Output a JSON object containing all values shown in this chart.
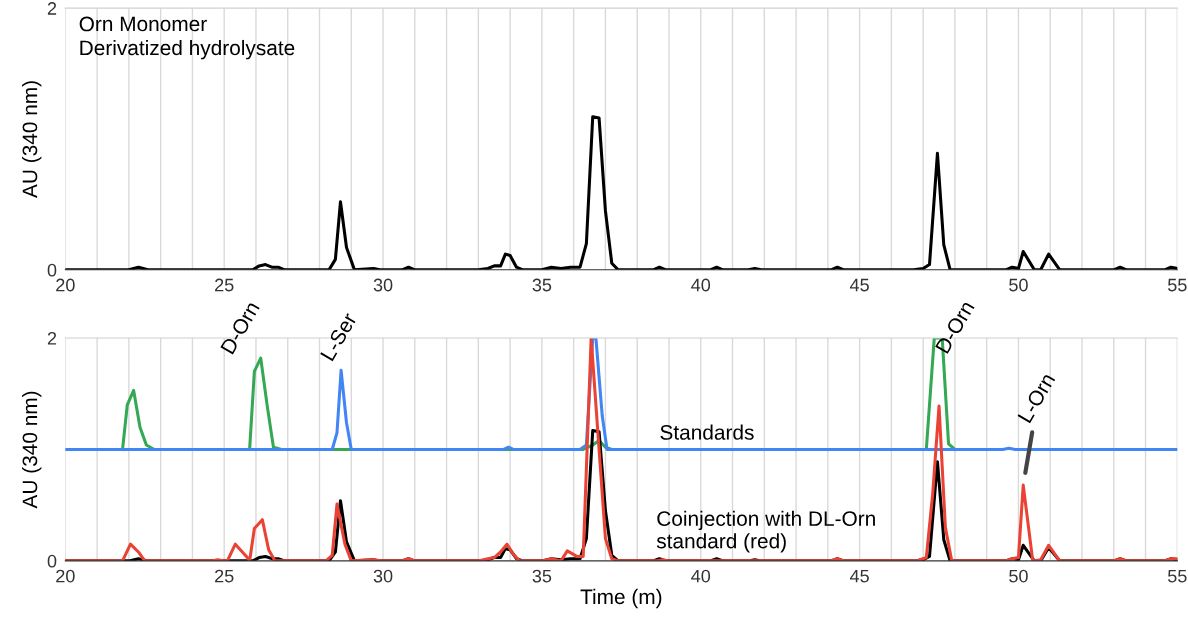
{
  "chart_data": [
    {
      "type": "line",
      "title": "Orn Monomer\nDerivatized hydrolysate",
      "ylabel": "AU (340 nm)",
      "xlim": [
        20,
        55
      ],
      "ylim": [
        0,
        2
      ],
      "yticks": [
        0,
        2
      ],
      "xticks": [
        20,
        {
          "value": 21,
          "label": null
        },
        {
          "value": 22,
          "label": null
        },
        {
          "value": 23,
          "label": null
        },
        {
          "value": 24,
          "label": null
        },
        25,
        {
          "value": 26,
          "label": null
        },
        {
          "value": 27,
          "label": null
        },
        {
          "value": 28,
          "label": null
        },
        {
          "value": 29,
          "label": null
        },
        30,
        {
          "value": 31,
          "label": null
        },
        {
          "value": 32,
          "label": null
        },
        {
          "value": 33,
          "label": null
        },
        {
          "value": 34,
          "label": null
        },
        35,
        {
          "value": 36,
          "label": null
        },
        {
          "value": 37,
          "label": null
        },
        {
          "value": 38,
          "label": null
        },
        {
          "value": 39,
          "label": null
        },
        40,
        {
          "value": 41,
          "label": null
        },
        {
          "value": 42,
          "label": null
        },
        {
          "value": 43,
          "label": null
        },
        {
          "value": 44,
          "label": null
        },
        45,
        {
          "value": 46,
          "label": null
        },
        {
          "value": 47,
          "label": null
        },
        {
          "value": 48,
          "label": null
        },
        {
          "value": 49,
          "label": null
        },
        50,
        {
          "value": 51,
          "label": null
        },
        {
          "value": 52,
          "label": null
        },
        {
          "value": 53,
          "label": null
        },
        {
          "value": 54,
          "label": null
        },
        55
      ],
      "grid": "x",
      "marker": "none",
      "line_style": "solid",
      "series": [
        {
          "color": "#000000",
          "x": [
            20,
            22.0,
            22.3,
            22.6,
            25.9,
            26.1,
            26.3,
            26.5,
            26.7,
            26.9,
            28.3,
            28.5,
            28.66,
            28.85,
            29.1,
            29.7,
            29.9,
            30.6,
            30.8,
            31.0,
            33.0,
            33.3,
            33.5,
            33.7,
            33.85,
            34.0,
            34.2,
            34.4,
            35.0,
            35.3,
            35.6,
            35.9,
            36.2,
            36.4,
            36.6,
            36.8,
            37.0,
            37.2,
            37.4,
            38.5,
            38.7,
            38.9,
            40.3,
            40.5,
            40.7,
            41.5,
            41.7,
            41.9,
            44.1,
            44.3,
            44.5,
            46.7,
            47.0,
            47.2,
            47.45,
            47.65,
            47.85,
            49.6,
            49.8,
            50.0,
            50.15,
            50.5,
            50.7,
            50.95,
            51.3,
            53.0,
            53.2,
            53.4,
            54.6,
            54.8,
            55
          ],
          "values": [
            0,
            0,
            0.02,
            0,
            0,
            0.03,
            0.04,
            0.02,
            0.02,
            0,
            0,
            0.08,
            0.52,
            0.17,
            0,
            0.01,
            0,
            0,
            0.02,
            0,
            0,
            0.01,
            0.03,
            0.03,
            0.12,
            0.11,
            0.02,
            0,
            0,
            0.02,
            0.01,
            0.02,
            0.02,
            0.2,
            1.17,
            1.16,
            0.45,
            0.05,
            0,
            0,
            0.02,
            0,
            0,
            0.02,
            0,
            0,
            0.01,
            0,
            0,
            0.02,
            0,
            0,
            0.01,
            0.04,
            0.89,
            0.19,
            0,
            0,
            0.02,
            0.01,
            0.14,
            0,
            0,
            0.12,
            0,
            0,
            0.02,
            0,
            0,
            0.02,
            0.01
          ]
        }
      ]
    },
    {
      "type": "line",
      "xlabel": "Time (m)",
      "ylabel": "AU (340 nm)",
      "xlim": [
        20,
        55
      ],
      "ylim": [
        0,
        2
      ],
      "yticks": [
        0,
        2
      ],
      "xticks": [
        20,
        {
          "value": 21,
          "label": null
        },
        {
          "value": 22,
          "label": null
        },
        {
          "value": 23,
          "label": null
        },
        {
          "value": 24,
          "label": null
        },
        25,
        {
          "value": 26,
          "label": null
        },
        {
          "value": 27,
          "label": null
        },
        {
          "value": 28,
          "label": null
        },
        {
          "value": 29,
          "label": null
        },
        30,
        {
          "value": 31,
          "label": null
        },
        {
          "value": 32,
          "label": null
        },
        {
          "value": 33,
          "label": null
        },
        {
          "value": 34,
          "label": null
        },
        35,
        {
          "value": 36,
          "label": null
        },
        {
          "value": 37,
          "label": null
        },
        {
          "value": 38,
          "label": null
        },
        {
          "value": 39,
          "label": null
        },
        40,
        {
          "value": 41,
          "label": null
        },
        {
          "value": 42,
          "label": null
        },
        {
          "value": 43,
          "label": null
        },
        {
          "value": 44,
          "label": null
        },
        45,
        {
          "value": 46,
          "label": null
        },
        {
          "value": 47,
          "label": null
        },
        {
          "value": 48,
          "label": null
        },
        {
          "value": 49,
          "label": null
        },
        50,
        {
          "value": 51,
          "label": null
        },
        {
          "value": 52,
          "label": null
        },
        {
          "value": 53,
          "label": null
        },
        {
          "value": 54,
          "label": null
        },
        55
      ],
      "grid": "x",
      "marker": "none",
      "line_style": "solid",
      "annotations": [
        {
          "text": "D-Orn",
          "x": 26.15,
          "y": 1.82
        },
        {
          "text": "L-Ser",
          "x": 28.68,
          "y": 1.71
        },
        {
          "text": "D-Orn",
          "x": 47.6,
          "y": 2.0
        },
        {
          "text": "L-Orn",
          "x": 50.15,
          "y": 0.68
        },
        {
          "text": "Standards",
          "x": 38.7,
          "y": 1.0
        },
        {
          "text": "Coinjection with DL-Orn\nstandard (red)",
          "x": 38.6,
          "y": 0
        }
      ],
      "series": [
        {
          "color": "#34a853",
          "x": [
            21.8,
            21.95,
            22.15,
            22.35,
            22.55,
            22.8,
            25.8,
            25.95,
            26.15,
            26.35,
            26.55,
            26.8,
            36.3,
            36.6,
            36.8,
            37.0,
            37.2,
            47.1,
            47.35,
            47.6,
            47.8,
            48.0
          ],
          "values": [
            1,
            1.4,
            1.53,
            1.2,
            1.04,
            1.0,
            1.0,
            1.7,
            1.82,
            1.4,
            1.02,
            1.0,
            1.0,
            1.04,
            1.08,
            1.02,
            1.0,
            1.0,
            2.0,
            2.0,
            1.05,
            1.0
          ]
        },
        {
          "color": "#4285f4",
          "x": [
            20,
            28.4,
            28.55,
            28.68,
            28.85,
            29.0,
            33.8,
            33.95,
            34.1,
            36.2,
            36.4,
            36.6,
            36.7,
            36.9,
            37.05,
            49.5,
            49.7,
            49.9,
            55
          ],
          "values": [
            1,
            1,
            1.15,
            1.71,
            1.24,
            1.0,
            1.0,
            1.02,
            1.0,
            1.0,
            1.04,
            2.0,
            2.0,
            1.3,
            1.0,
            1.0,
            1.01,
            1.0,
            1.0
          ]
        },
        {
          "color": "#000000",
          "x": [
            20,
            22.0,
            22.3,
            22.6,
            25.9,
            26.1,
            26.3,
            26.5,
            26.7,
            26.9,
            28.3,
            28.5,
            28.66,
            28.85,
            29.1,
            29.7,
            29.9,
            30.6,
            30.8,
            31.0,
            33.0,
            33.3,
            33.5,
            33.7,
            33.85,
            34.0,
            34.2,
            34.4,
            35.0,
            35.3,
            35.6,
            35.9,
            36.2,
            36.4,
            36.6,
            36.8,
            37.0,
            37.2,
            37.4,
            38.5,
            38.7,
            38.9,
            40.3,
            40.5,
            40.7,
            41.5,
            41.7,
            41.9,
            44.1,
            44.3,
            44.5,
            46.7,
            47.0,
            47.2,
            47.45,
            47.65,
            47.85,
            49.6,
            49.8,
            50.0,
            50.15,
            50.5,
            50.7,
            50.95,
            51.3,
            53.0,
            53.2,
            53.4,
            54.6,
            54.8,
            55
          ],
          "values": [
            0,
            0,
            0.02,
            0,
            0,
            0.03,
            0.04,
            0.02,
            0.02,
            0,
            0,
            0.08,
            0.54,
            0.17,
            0,
            0.01,
            0,
            0,
            0.02,
            0,
            0,
            0.01,
            0.03,
            0.03,
            0.11,
            0.1,
            0.02,
            0,
            0,
            0.02,
            0.01,
            0.02,
            0.02,
            0.2,
            1.17,
            1.16,
            0.45,
            0.05,
            0,
            0,
            0.02,
            0,
            0,
            0.02,
            0,
            0,
            0.01,
            0,
            0,
            0.02,
            0,
            0,
            0.01,
            0.04,
            0.89,
            0.19,
            0,
            0,
            0.02,
            0.01,
            0.14,
            0,
            0,
            0.12,
            0,
            0,
            0.02,
            0,
            0,
            0.02,
            0.01
          ]
        },
        {
          "color": "#ea4335",
          "x": [
            20,
            21.8,
            22.05,
            22.3,
            22.5,
            24.6,
            24.8,
            25.0,
            25.1,
            25.35,
            25.7,
            25.8,
            25.95,
            26.2,
            26.4,
            26.6,
            28.2,
            28.4,
            28.55,
            28.8,
            29.0,
            29.7,
            30.0,
            30.6,
            30.8,
            31.0,
            33.0,
            33.3,
            33.5,
            33.7,
            33.9,
            34.1,
            34.3,
            35.0,
            35.3,
            35.6,
            35.8,
            36.1,
            36.3,
            36.55,
            36.8,
            37.0,
            37.2,
            37.4,
            38.6,
            38.8,
            39.0,
            44.1,
            44.3,
            44.5,
            46.8,
            47.1,
            47.3,
            47.5,
            47.7,
            47.9,
            49.6,
            49.8,
            50.0,
            50.15,
            50.45,
            50.7,
            50.95,
            51.3,
            53.0,
            53.2,
            53.4,
            54.6,
            54.8,
            55
          ],
          "values": [
            0,
            0,
            0.15,
            0.08,
            0,
            0,
            0.01,
            0,
            0,
            0.15,
            0.04,
            0,
            0.29,
            0.37,
            0.1,
            0,
            0,
            0.05,
            0.51,
            0.15,
            0,
            0.01,
            0,
            0,
            0.02,
            0,
            0,
            0.02,
            0.03,
            0.08,
            0.15,
            0.06,
            0,
            0,
            0.02,
            0,
            0.09,
            0.04,
            0.04,
            2.0,
            1.0,
            0.2,
            0.02,
            0,
            0,
            0.01,
            0,
            0,
            0.02,
            0,
            0,
            0.03,
            0.6,
            1.39,
            0.3,
            0,
            0,
            0.02,
            0.03,
            0.68,
            0,
            0.01,
            0.14,
            0,
            0,
            0.02,
            0,
            0,
            0.02,
            0.02
          ]
        }
      ]
    }
  ]
}
